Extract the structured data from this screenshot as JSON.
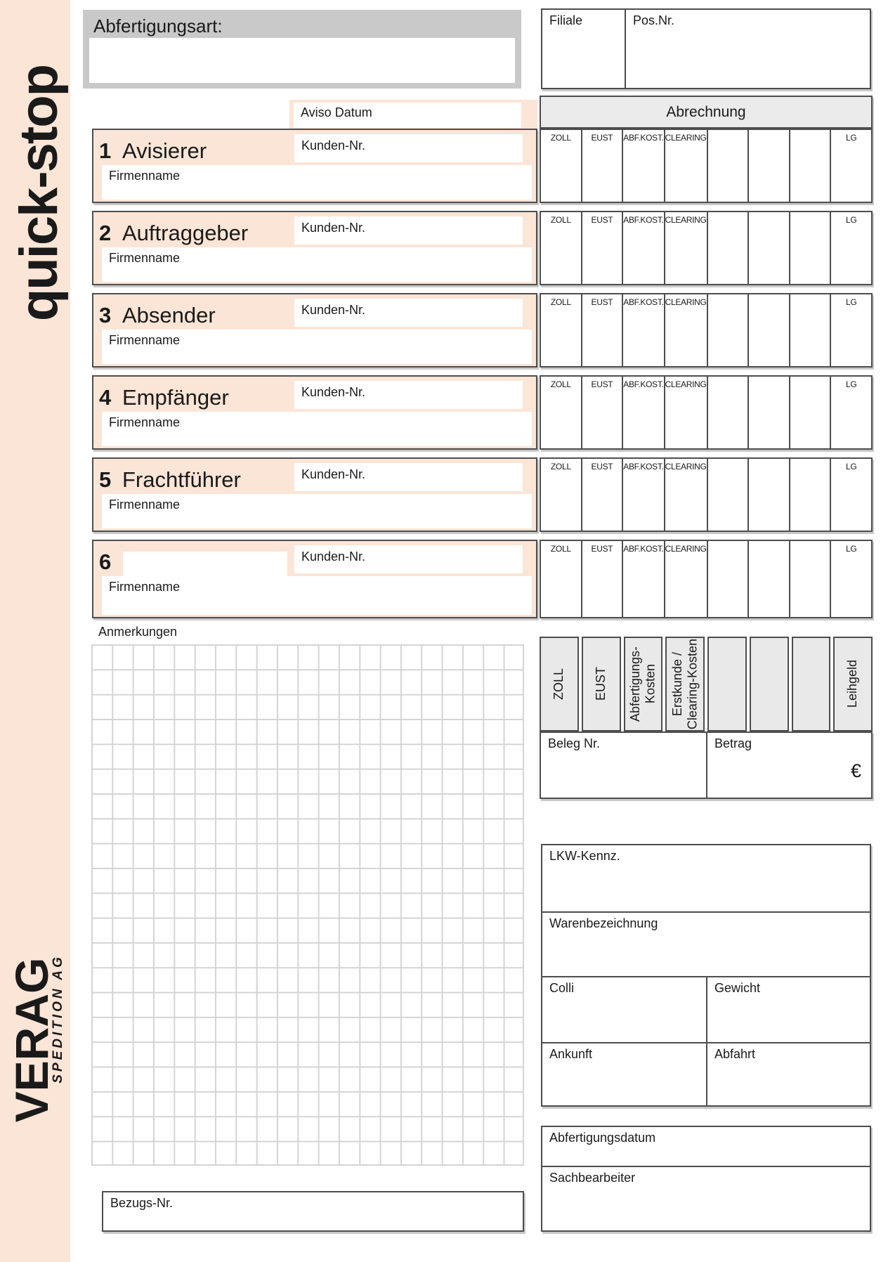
{
  "colors": {
    "peach": "#fbe5d6",
    "header_gray": "#c9c9c9",
    "light_gray": "#e9e9e9",
    "border": "#4d4d4d",
    "grid_line": "#d4d4d4"
  },
  "sidebar": {
    "logo": "quick-stop",
    "brand": "VERAG",
    "brand_sub": "SPEDITION AG"
  },
  "header": {
    "abfertigungsart_label": "Abfertigungsart:",
    "filiale_label": "Filiale",
    "pos_nr_label": "Pos.Nr.",
    "aviso_datum_label": "Aviso Datum"
  },
  "abrechnung": {
    "title": "Abrechnung",
    "column_headers": [
      "ZOLL",
      "EUST",
      "ABF.KOST.",
      "CLEARING",
      "",
      "",
      "",
      "LG"
    ],
    "rotated_labels": [
      "ZOLL",
      "EUST",
      "Abfertigungs-\nKosten",
      "Erstkunde /\nClearing-Kosten",
      "",
      "",
      "",
      "Leihgeld"
    ],
    "row_count": 6
  },
  "sections": [
    {
      "num": "1",
      "label": "Avisierer"
    },
    {
      "num": "2",
      "label": "Auftraggeber"
    },
    {
      "num": "3",
      "label": "Absender"
    },
    {
      "num": "4",
      "label": "Empfänger"
    },
    {
      "num": "5",
      "label": "Frachtführer"
    },
    {
      "num": "6",
      "label": ""
    }
  ],
  "section_fields": {
    "kunden_nr": "Kunden-Nr.",
    "firmenname": "Firmenname"
  },
  "anmerkungen_label": "Anmerkungen",
  "beleg": {
    "beleg_label": "Beleg Nr.",
    "betrag_label": "Betrag",
    "currency": "€"
  },
  "cargo": {
    "lkw_label": "LKW-Kennz.",
    "waren_label": "Warenbezeichnung",
    "colli_label": "Colli",
    "gewicht_label": "Gewicht",
    "ankunft_label": "Ankunft",
    "abfahrt_label": "Abfahrt"
  },
  "processing": {
    "abfertigungsdatum_label": "Abfertigungsdatum",
    "sachbearbeiter_label": "Sachbearbeiter"
  },
  "bezug": {
    "label": "Bezugs-Nr."
  }
}
